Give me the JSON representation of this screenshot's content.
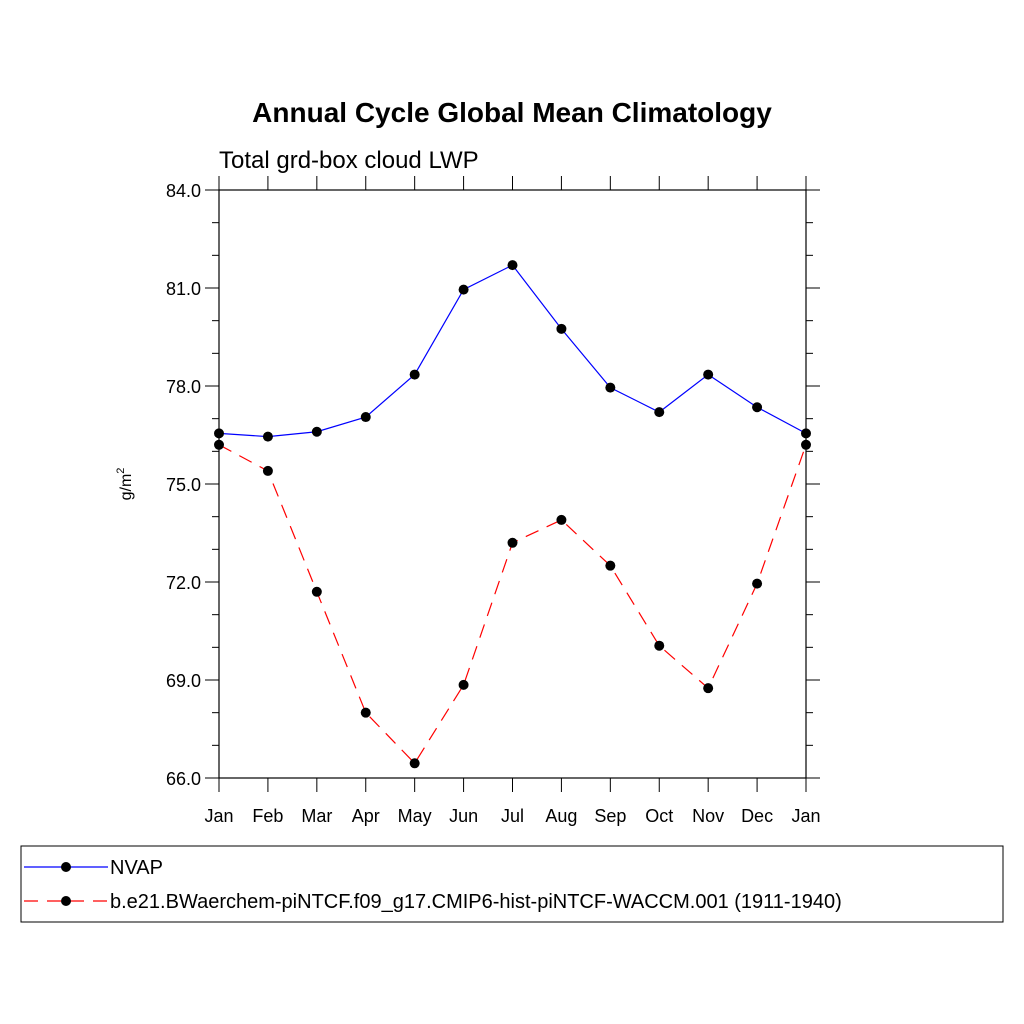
{
  "chart_data": {
    "type": "line",
    "title": "Annual Cycle Global Mean Climatology",
    "subtitle": "Total grd-box cloud LWP",
    "xlabel": "",
    "ylabel_base": "g/m",
    "ylabel_sup": "2",
    "categories": [
      "Jan",
      "Feb",
      "Mar",
      "Apr",
      "May",
      "Jun",
      "Jul",
      "Aug",
      "Sep",
      "Oct",
      "Nov",
      "Dec",
      "Jan"
    ],
    "ylim": [
      66.0,
      84.0
    ],
    "yticks": [
      "66.0",
      "69.0",
      "72.0",
      "75.0",
      "78.0",
      "81.0",
      "84.0"
    ],
    "grid": false,
    "legend_position": "bottom",
    "series": [
      {
        "name": "NVAP",
        "color": "#0000ff",
        "dash": "solid",
        "marker": "circle",
        "values": [
          76.55,
          76.45,
          76.6,
          77.05,
          78.35,
          80.95,
          81.7,
          79.75,
          77.95,
          77.2,
          78.35,
          77.35,
          76.55
        ]
      },
      {
        "name": "b.e21.BWaerchem-piNTCF.f09_g17.CMIP6-hist-piNTCF-WACCM.001 (1911-1940)",
        "color": "#ff0000",
        "dash": "dashed",
        "marker": "circle",
        "values": [
          76.2,
          75.4,
          71.7,
          68.0,
          66.45,
          68.85,
          73.2,
          73.9,
          72.5,
          70.05,
          68.75,
          71.95,
          76.2
        ]
      }
    ]
  }
}
